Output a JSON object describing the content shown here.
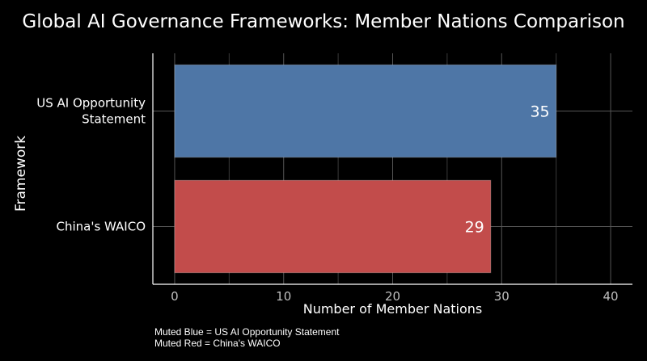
{
  "chart_data": {
    "type": "bar",
    "orientation": "horizontal",
    "title": "Global AI Governance Frameworks: Member Nations Comparison",
    "xlabel": "Number of Member Nations",
    "ylabel": "Framework",
    "xlim": [
      -2,
      42
    ],
    "xticks": [
      0,
      10,
      20,
      30,
      40
    ],
    "grid": true,
    "categories": [
      [
        "US AI Opportunity",
        "Statement"
      ],
      [
        "China's WAICO"
      ]
    ],
    "values": [
      35,
      29
    ],
    "data_labels": [
      "35",
      "29"
    ],
    "bar_colors": [
      "#4e76a6",
      "#c24c4b"
    ],
    "background": "#000000",
    "gridline_color": "#555555"
  },
  "caption": {
    "line1": "Muted Blue = US AI Opportunity Statement",
    "line2": "Muted Red = China's WAICO"
  }
}
